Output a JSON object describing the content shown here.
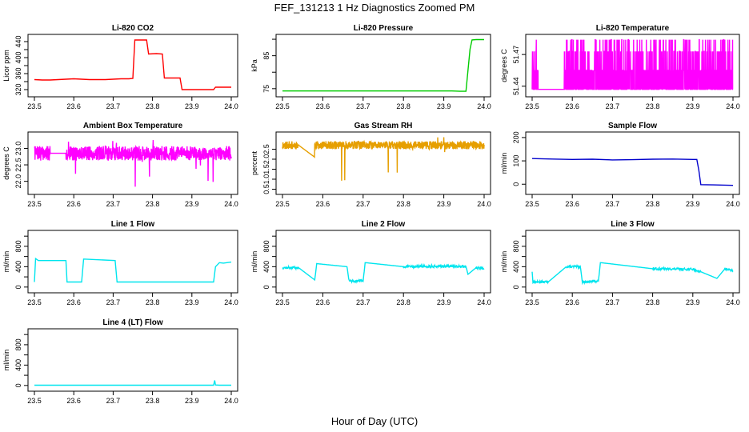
{
  "figure": {
    "title": "FEF_131213  1 Hz Diagnostics Zoomed PM",
    "xlabel": "Hour of Day (UTC)"
  },
  "chart_data": [
    {
      "id": "co2",
      "type": "line",
      "title": "Li-820 CO2",
      "ylabel": "Licor ppm",
      "color": "#ff0000",
      "xlim": [
        23.5,
        24.0
      ],
      "ylim": [
        310,
        450
      ],
      "xticks": [
        "23.5",
        "23.6",
        "23.7",
        "23.8",
        "23.9",
        "24.0"
      ],
      "yticks": [
        320,
        340,
        360,
        380,
        400,
        420,
        440
      ],
      "yticklabels": [
        "320",
        "",
        "360",
        "",
        "400",
        "",
        "440"
      ],
      "x": [
        23.5,
        23.52,
        23.54,
        23.56,
        23.58,
        23.6,
        23.62,
        23.64,
        23.66,
        23.68,
        23.7,
        23.72,
        23.74,
        23.75,
        23.755,
        23.77,
        23.785,
        23.79,
        23.81,
        23.825,
        23.83,
        23.85,
        23.87,
        23.875,
        23.9,
        23.93,
        23.955,
        23.96,
        23.98,
        24.0
      ],
      "y": [
        345,
        344,
        344,
        345,
        346,
        347,
        346,
        345,
        345,
        345,
        346,
        347,
        347,
        348,
        444,
        444,
        444,
        409,
        410,
        409,
        349,
        349,
        349,
        320,
        320,
        320,
        320,
        326,
        326,
        326
      ]
    },
    {
      "id": "pressure",
      "type": "line",
      "title": "Li-820 Pressure",
      "ylabel": "kPa",
      "color": "#00cc00",
      "xlim": [
        23.5,
        24.0
      ],
      "ylim": [
        73.5,
        90.5
      ],
      "xticks": [
        "23.5",
        "23.6",
        "23.7",
        "23.8",
        "23.9",
        "24.0"
      ],
      "yticks": [
        75,
        80,
        85,
        90
      ],
      "yticklabels": [
        "75",
        "",
        "85",
        ""
      ],
      "x": [
        23.5,
        23.6,
        23.7,
        23.8,
        23.9,
        23.92,
        23.94,
        23.955,
        23.96,
        23.965,
        23.97,
        23.98,
        24.0
      ],
      "y": [
        74.3,
        74.3,
        74.3,
        74.3,
        74.3,
        74.3,
        74.2,
        74.2,
        80.5,
        87.0,
        89.8,
        89.9,
        89.9
      ]
    },
    {
      "id": "li820temp",
      "type": "line",
      "title": "Li-820 Temperature",
      "ylabel": "degrees C",
      "color": "#ff00ff",
      "xlim": [
        23.5,
        24.0
      ],
      "ylim": [
        51.433,
        51.486
      ],
      "xticks": [
        "23.5",
        "23.6",
        "23.7",
        "23.8",
        "23.9",
        "24.0"
      ],
      "yticks": [
        51.44,
        51.47
      ],
      "yticklabels": [
        "51.44",
        "51.47"
      ],
      "pattern": "noise",
      "noise": {
        "levels": [
          51.437,
          51.455,
          51.473,
          51.484
        ],
        "density": 1400,
        "gap": [
          23.515,
          23.58
        ],
        "seed": 3
      }
    },
    {
      "id": "ambient",
      "type": "line",
      "title": "Ambient Box Temperature",
      "ylabel": "degrees C",
      "color": "#ff00ff",
      "xlim": [
        23.5,
        24.0
      ],
      "ylim": [
        21.7,
        23.4
      ],
      "xticks": [
        "23.5",
        "23.6",
        "23.7",
        "23.8",
        "23.9",
        "24.0"
      ],
      "yticks": [
        22.0,
        22.5,
        23.0
      ],
      "yticklabels": [
        "22.0",
        "22.5",
        "23.0"
      ],
      "pattern": "noise",
      "noise": {
        "center": 22.85,
        "spread": 0.22,
        "spikes_low": 21.8,
        "spikes_high": 23.3,
        "density": 900,
        "gap": [
          23.54,
          23.58
        ],
        "seed": 7
      }
    },
    {
      "id": "rh",
      "type": "line",
      "title": "Gas Stream RH",
      "ylabel": "percent",
      "color": "#e69f00",
      "xlim": [
        23.5,
        24.0
      ],
      "ylim": [
        0.4,
        3.2
      ],
      "xticks": [
        "23.5",
        "23.6",
        "23.7",
        "23.8",
        "23.9",
        "24.0"
      ],
      "yticks": [
        0.5,
        1.0,
        1.5,
        2.0,
        2.5
      ],
      "yticklabels": [
        "0.5",
        "1.0",
        "1.5",
        "2.0",
        "2.5"
      ],
      "pattern": "noise",
      "noise": {
        "center": 2.7,
        "spread": 0.2,
        "spikes_low": 0.55,
        "spikes_high": 3.1,
        "density": 900,
        "gap": [
          23.54,
          23.58
        ],
        "gap_low": 2.1,
        "seed": 11
      }
    },
    {
      "id": "sampleflow",
      "type": "line",
      "title": "Sample Flow",
      "ylabel": "ml/min",
      "color": "#0000cc",
      "xlim": [
        23.5,
        24.0
      ],
      "ylim": [
        -30,
        210
      ],
      "xticks": [
        "23.5",
        "23.6",
        "23.7",
        "23.8",
        "23.9",
        "24.0"
      ],
      "yticks": [
        0,
        100,
        200
      ],
      "yticklabels": [
        "0",
        "100",
        "200"
      ],
      "x": [
        23.5,
        23.55,
        23.6,
        23.65,
        23.7,
        23.75,
        23.8,
        23.85,
        23.9,
        23.91,
        23.915,
        23.92,
        23.95,
        24.0
      ],
      "y": [
        110,
        108,
        106,
        107,
        104,
        105,
        107,
        108,
        106,
        106,
        60,
        -2,
        -3,
        -5
      ]
    },
    {
      "id": "line1",
      "type": "line",
      "title": "Line 1 Flow",
      "ylabel": "ml/min",
      "color": "#00e5ee",
      "xlim": [
        23.5,
        24.0
      ],
      "ylim": [
        -50,
        1050
      ],
      "xticks": [
        "23.5",
        "23.6",
        "23.7",
        "23.8",
        "23.9",
        "24.0"
      ],
      "yticks": [
        0,
        200,
        400,
        600,
        800,
        1000
      ],
      "yticklabels": [
        "0",
        "",
        "400",
        "",
        "800",
        ""
      ],
      "x": [
        23.5,
        23.503,
        23.51,
        23.58,
        23.583,
        23.62,
        23.625,
        23.705,
        23.71,
        23.8,
        23.9,
        23.955,
        23.96,
        23.97,
        23.98,
        24.0
      ],
      "y": [
        100,
        560,
        520,
        520,
        100,
        100,
        550,
        520,
        100,
        100,
        100,
        100,
        400,
        480,
        470,
        490
      ]
    },
    {
      "id": "line2",
      "type": "line",
      "title": "Line 2 Flow",
      "ylabel": "ml/min",
      "color": "#00e5ee",
      "xlim": [
        23.5,
        24.0
      ],
      "ylim": [
        -50,
        1050
      ],
      "xticks": [
        "23.5",
        "23.6",
        "23.7",
        "23.8",
        "23.9",
        "24.0"
      ],
      "yticks": [
        0,
        200,
        400,
        600,
        800,
        1000
      ],
      "yticklabels": [
        "0",
        "",
        "400",
        "",
        "800",
        ""
      ],
      "x": [
        23.5,
        23.54,
        23.58,
        23.585,
        23.66,
        23.665,
        23.7,
        23.705,
        23.8,
        23.9,
        23.955,
        23.96,
        23.98,
        24.0
      ],
      "y": [
        380,
        380,
        140,
        460,
        400,
        120,
        120,
        480,
        400,
        410,
        400,
        250,
        380,
        360
      ],
      "noise_band": 50
    },
    {
      "id": "line3",
      "type": "line",
      "title": "Line 3 Flow",
      "ylabel": "ml/min",
      "color": "#00e5ee",
      "xlim": [
        23.5,
        24.0
      ],
      "ylim": [
        -50,
        1050
      ],
      "xticks": [
        "23.5",
        "23.6",
        "23.7",
        "23.8",
        "23.9",
        "24.0"
      ],
      "yticks": [
        0,
        200,
        400,
        600,
        800,
        1000
      ],
      "yticklabels": [
        "0",
        "",
        "400",
        "",
        "800",
        ""
      ],
      "x": [
        23.5,
        23.502,
        23.505,
        23.54,
        23.585,
        23.62,
        23.625,
        23.665,
        23.67,
        23.8,
        23.9,
        23.92,
        23.96,
        23.98,
        24.0
      ],
      "y": [
        300,
        100,
        100,
        100,
        400,
        400,
        100,
        120,
        480,
        360,
        350,
        300,
        170,
        360,
        320
      ],
      "noise_band": 45
    },
    {
      "id": "line4",
      "type": "line",
      "title": "Line 4 (LT) Flow",
      "ylabel": "ml/min",
      "color": "#00e5ee",
      "xlim": [
        23.5,
        24.0
      ],
      "ylim": [
        -50,
        1050
      ],
      "xticks": [
        "23.5",
        "23.6",
        "23.7",
        "23.8",
        "23.9",
        "24.0"
      ],
      "yticks": [
        0,
        200,
        400,
        600,
        800,
        1000
      ],
      "yticklabels": [
        "0",
        "",
        "400",
        "",
        "800",
        ""
      ],
      "x": [
        23.5,
        23.6,
        23.7,
        23.8,
        23.9,
        23.955,
        23.958,
        23.96,
        23.97,
        24.0
      ],
      "y": [
        5,
        5,
        5,
        5,
        5,
        5,
        100,
        10,
        5,
        5
      ]
    }
  ]
}
